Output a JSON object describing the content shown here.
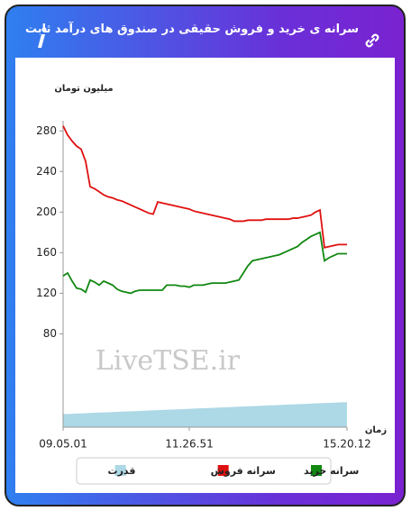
{
  "header": {
    "title": "سرانه ی خرید و فروش حقیقی در صندوق های درآمد ثابت"
  },
  "chart_data": {
    "type": "line",
    "y_label": "میلیون تومان",
    "x_label": "زمان",
    "watermark": "LiveTSE.ir",
    "categories": [
      "09.05.01",
      null,
      null,
      null,
      null,
      null,
      null,
      null,
      null,
      null,
      null,
      null,
      null,
      null,
      null,
      null,
      null,
      null,
      null,
      null,
      null,
      null,
      null,
      null,
      null,
      null,
      null,
      null,
      "11.26.51",
      null,
      null,
      null,
      null,
      null,
      null,
      null,
      null,
      null,
      null,
      null,
      null,
      null,
      null,
      null,
      null,
      null,
      null,
      null,
      null,
      null,
      null,
      null,
      null,
      null,
      null,
      null,
      null,
      null,
      null,
      null,
      null,
      null,
      null,
      "15.20.12"
    ],
    "ylim": [
      -12,
      290
    ],
    "yticks": [
      80,
      120,
      160,
      200,
      240,
      280
    ],
    "series": [
      {
        "name": "سرانه خرید",
        "color": "#118811",
        "values": [
          137,
          140,
          132,
          125,
          124,
          121,
          133,
          131,
          128,
          132,
          130,
          128,
          124,
          122,
          121,
          120,
          122,
          123,
          123,
          123,
          123,
          123,
          123,
          128,
          128,
          128,
          127,
          127,
          126,
          128,
          128,
          128,
          129,
          130,
          130,
          130,
          130,
          131,
          132,
          133,
          140,
          147,
          152,
          153,
          154,
          155,
          156,
          157,
          158,
          160,
          162,
          164,
          166,
          170,
          173,
          176,
          178,
          180,
          152,
          155,
          157,
          159,
          159,
          159
        ]
      },
      {
        "name": "سرانه فروش",
        "color": "#e01010",
        "values": [
          285,
          276,
          270,
          265,
          262,
          250,
          225,
          223,
          220,
          217,
          215,
          214,
          212,
          211,
          209,
          207,
          205,
          203,
          201,
          199,
          198,
          210,
          209,
          208,
          207,
          206,
          205,
          204,
          203,
          201,
          200,
          199,
          198,
          197,
          196,
          195,
          194,
          193,
          191,
          191,
          191,
          192,
          192,
          192,
          192,
          193,
          193,
          193,
          193,
          193,
          193,
          194,
          194,
          195,
          196,
          197,
          200,
          202,
          165,
          166,
          167,
          168,
          168,
          168
        ]
      },
      {
        "name": "قدرت",
        "color": "#add8e6",
        "type": "area",
        "values": [
          1,
          1,
          1.2,
          1.4,
          1.6,
          1.8,
          2,
          2.2,
          2.4,
          2.5,
          2.7,
          2.9,
          3.1,
          3.3,
          3.5,
          3.6,
          3.8,
          4,
          4.2,
          4.4,
          4.6,
          4.8,
          5,
          5.2,
          5.3,
          5.5,
          5.7,
          5.9,
          6.1,
          6.3,
          6.5,
          6.7,
          6.9,
          7,
          7.2,
          7.4,
          7.6,
          7.8,
          8,
          8.2,
          8.4,
          8.6,
          8.7,
          8.9,
          9.1,
          9.3,
          9.5,
          9.7,
          9.9,
          10.1,
          10.3,
          10.4,
          10.6,
          10.8,
          11,
          11.2,
          11.4,
          11.6,
          11.8,
          12,
          12.1,
          12.3,
          12.5,
          12.7
        ]
      }
    ]
  }
}
